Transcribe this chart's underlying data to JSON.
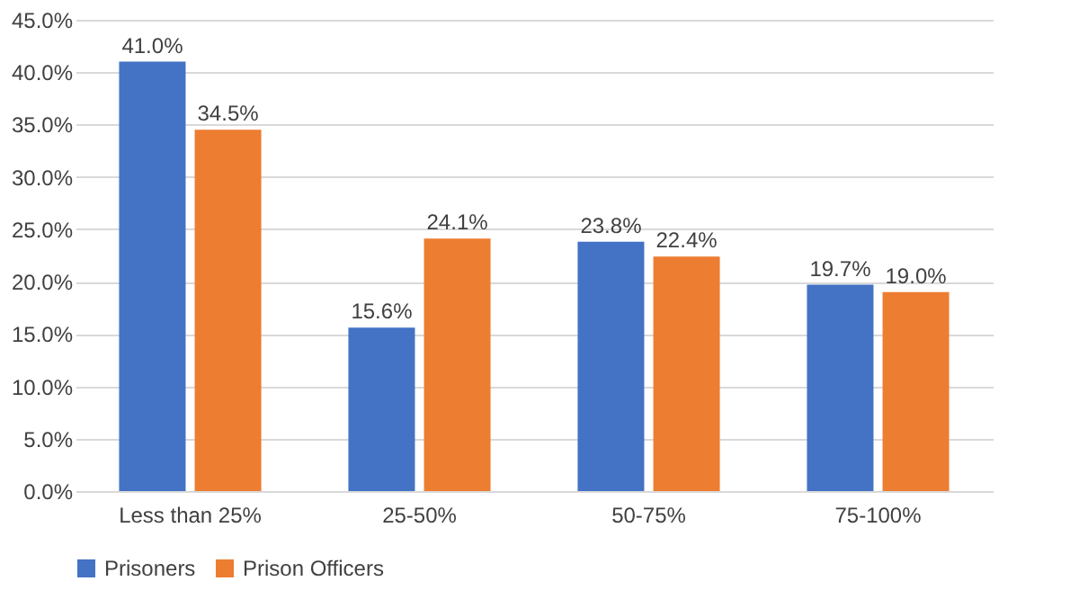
{
  "chart_data": {
    "type": "bar",
    "categories": [
      "Less than 25%",
      "25-50%",
      "50-75%",
      "75-100%"
    ],
    "series": [
      {
        "name": "Prisoners",
        "color": "#4472c4",
        "values": [
          41.0,
          15.6,
          23.8,
          19.7
        ],
        "value_labels": [
          "41.0%",
          "15.6%",
          "23.8%",
          "19.7%"
        ]
      },
      {
        "name": "Prison Officers",
        "color": "#ed7d31",
        "values": [
          34.5,
          24.1,
          22.4,
          19.0
        ],
        "value_labels": [
          "34.5%",
          "24.1%",
          "22.4%",
          "19.0%"
        ]
      }
    ],
    "ylim": [
      0,
      45
    ],
    "yticks": [
      {
        "value": 0,
        "label": "0.0%"
      },
      {
        "value": 5,
        "label": "5.0%"
      },
      {
        "value": 10,
        "label": "10.0%"
      },
      {
        "value": 15,
        "label": "15.0%"
      },
      {
        "value": 20,
        "label": "20.0%"
      },
      {
        "value": 25,
        "label": "25.0%"
      },
      {
        "value": 30,
        "label": "30.0%"
      },
      {
        "value": 35,
        "label": "35.0%"
      },
      {
        "value": 40,
        "label": "40.0%"
      },
      {
        "value": 45,
        "label": "45.0%"
      }
    ],
    "grid": "y",
    "legend": "bottom"
  }
}
